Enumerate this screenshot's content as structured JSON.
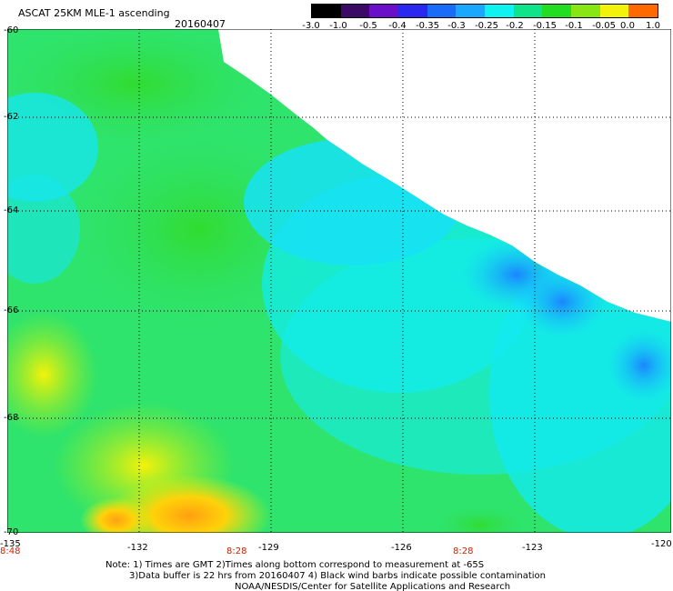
{
  "header": {
    "title": "ASCAT 25KM MLE-1 ascending",
    "date": "20160407"
  },
  "colorbar": {
    "tick_labels": [
      "-3.0",
      "-1.0",
      "-0.5",
      "-0.4",
      "-0.35",
      "-0.3",
      "-0.25",
      "-0.2",
      "-0.15",
      "-0.1",
      "-0.05",
      "0.0",
      "1.0"
    ],
    "colors": [
      "#000000",
      "#3a0a66",
      "#6a10c8",
      "#2a28ee",
      "#1a6cf8",
      "#1aa8ff",
      "#10f2f2",
      "#10e48a",
      "#22dd22",
      "#88e614",
      "#f2f20a",
      "#ff9a00",
      "#ff2a0a"
    ]
  },
  "axes": {
    "latitudes": [
      "-60",
      "-62",
      "-64",
      "-66",
      "-68",
      "-70"
    ],
    "longitudes": [
      "-135",
      "-132",
      "-129",
      "-126",
      "-123",
      "-120"
    ]
  },
  "times": [
    {
      "lon": "-135",
      "label": "8:48"
    },
    {
      "lon": "-130.5",
      "label": "8:28"
    },
    {
      "lon": "-125.5",
      "label": "8:28"
    }
  ],
  "notes": {
    "line1": "Note: 1) Times are GMT 2)Times along bottom correspond to measurement at -65S",
    "line2": "3)Data buffer is 22 hrs from 20160407 4) Black wind barbs indicate possible contamination",
    "line3": "NOAA/NESDIS/Center for Satellite Applications and Research"
  }
}
